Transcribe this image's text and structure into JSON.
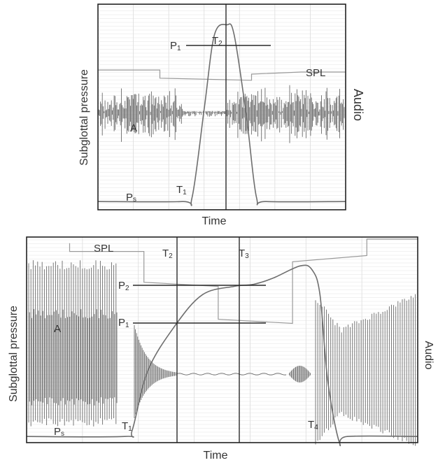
{
  "chart_data": [
    {
      "type": "line",
      "title": "",
      "xlabel": "Time",
      "ylabel": "Subglottal pressure",
      "ylabel_right": "Audio",
      "grid": true,
      "legend": false,
      "series": [
        {
          "name": "Ps",
          "description": "Subglottal pressure: baseline, rises at T1 to plateau P1 at T2, then falls back to baseline",
          "points_rel": [
            [
              0,
              0.04
            ],
            [
              0.34,
              0.04
            ],
            [
              0.38,
              0.06
            ],
            [
              0.43,
              0.5
            ],
            [
              0.47,
              0.85
            ],
            [
              0.52,
              0.9
            ],
            [
              0.55,
              0.85
            ],
            [
              0.6,
              0.45
            ],
            [
              0.64,
              0.06
            ],
            [
              0.68,
              0.04
            ],
            [
              1,
              0.04
            ]
          ]
        },
        {
          "name": "SPL",
          "description": "Sound pressure level trace (step line), dips during occlusion",
          "points_rel": [
            [
              0,
              0.68
            ],
            [
              0.25,
              0.68
            ],
            [
              0.25,
              0.64
            ],
            [
              0.62,
              0.63
            ],
            [
              0.62,
              0.66
            ],
            [
              0.82,
              0.67
            ],
            [
              1,
              0.67
            ]
          ]
        },
        {
          "name": "A",
          "description": "Audio waveform: noisy voicing before and after, near-silent during occlusion"
        }
      ],
      "annotations": [
        "P1",
        "T2",
        "T1",
        "Ps",
        "SPL",
        "A"
      ],
      "markers": {
        "vertical_T2_rel": 0.52,
        "P1_level_rel": 0.9
      }
    },
    {
      "type": "line",
      "title": "",
      "xlabel": "Time",
      "ylabel": "Subglottal pressure",
      "ylabel_right": "Audio",
      "grid": true,
      "legend": false,
      "series": [
        {
          "name": "Ps",
          "description": "Subglottal pressure: baseline, rises from T1, passes P1 at T2, reaches P2 at T3, peaks then drops sharply at T4 with undershoot",
          "points_rel": [
            [
              0,
              0.03
            ],
            [
              0.25,
              0.03
            ],
            [
              0.27,
              0.06
            ],
            [
              0.31,
              0.35
            ],
            [
              0.38,
              0.57
            ],
            [
              0.45,
              0.72
            ],
            [
              0.53,
              0.76
            ],
            [
              0.58,
              0.77
            ],
            [
              0.63,
              0.8
            ],
            [
              0.7,
              0.86
            ],
            [
              0.73,
              0.84
            ],
            [
              0.75,
              0.72
            ],
            [
              0.77,
              0.3
            ],
            [
              0.8,
              0.0
            ],
            [
              0.82,
              0.03
            ],
            [
              1,
              0.03
            ]
          ]
        },
        {
          "name": "SPL",
          "description": "Sound pressure level step trace",
          "points_rel": [
            [
              0.11,
              0.97
            ],
            [
              0.11,
              0.93
            ],
            [
              0.3,
              0.93
            ],
            [
              0.3,
              0.78
            ],
            [
              0.49,
              0.76
            ],
            [
              0.49,
              0.6
            ],
            [
              0.68,
              0.58
            ],
            [
              0.68,
              0.88
            ],
            [
              0.87,
              0.91
            ],
            [
              0.87,
              0.99
            ],
            [
              1,
              0.99
            ]
          ]
        },
        {
          "name": "A",
          "description": "Audio: strong periodic voicing, decaying burst after T1, near-flat during closure, then burst and rising voicing after T4"
        }
      ],
      "annotations": [
        "SPL",
        "T2",
        "T3",
        "P2",
        "P1",
        "A",
        "T1",
        "T4",
        "Ps"
      ],
      "markers": {
        "vertical_T2_rel": 0.384,
        "vertical_T3_rel": 0.543,
        "P1_level_rel": 0.58,
        "P2_level_rel": 0.76
      }
    }
  ],
  "top": {
    "labels": {
      "p1": "P",
      "p1_sub": "1",
      "t2": "T",
      "t2_sub": "2",
      "t1": "T",
      "t1_sub": "1",
      "ps": "P",
      "ps_sub": "s",
      "spl": "SPL",
      "a": "A",
      "xlabel": "Time",
      "ylabel": "Subglottal pressure",
      "ylabel_right": "Audio"
    }
  },
  "bottom": {
    "labels": {
      "spl": "SPL",
      "t2": "T",
      "t2_sub": "2",
      "t3": "T",
      "t3_sub": "3",
      "p2": "P",
      "p2_sub": "2",
      "p1": "P",
      "p1_sub": "1",
      "a": "A",
      "t1": "T",
      "t1_sub": "1",
      "t4": "T",
      "t4_sub": "4",
      "ps": "P",
      "ps_sub": "s",
      "xlabel": "Time",
      "ylabel": "Subglottal pressure",
      "ylabel_right": "Audio"
    }
  },
  "colors": {
    "frame": "#222222",
    "grid_major": "#dcdcdc",
    "grid_minor": "#ececec",
    "pressure": "#6e6e6e",
    "spl": "#9a9a9a",
    "audio": "#6a6a6a",
    "marker": "#2a2a2a",
    "text": "#333333"
  }
}
